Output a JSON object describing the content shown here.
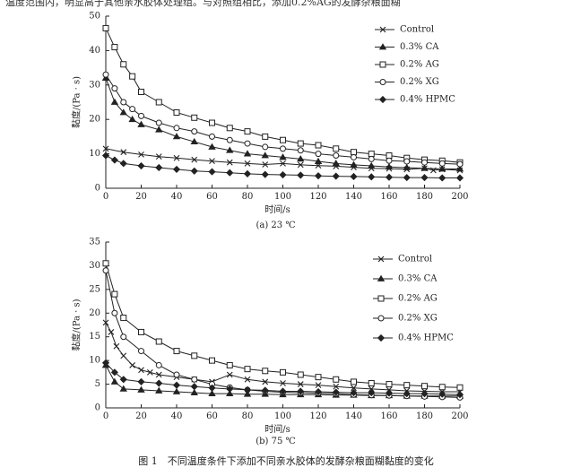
{
  "top_fragment": "温度范围内，明显高于其他亲水胶体处理组。与对照组相比，添加0.2%AG的发酵杂粮面糊",
  "caption": "图 1　不同温度条件下添加不同亲水胶体的发酵杂粮面糊黏度的变化",
  "chart_data": [
    {
      "type": "line",
      "subtitle": "(a) 23 ℃",
      "xlabel": "时间/s",
      "ylabel": "黏度/(Pa · s)",
      "xlim": [
        0,
        200
      ],
      "ylim": [
        0,
        50
      ],
      "xticks": [
        "0",
        "20",
        "40",
        "60",
        "80",
        "100",
        "120",
        "140",
        "160",
        "180",
        "200"
      ],
      "yticks": [
        "0",
        "10",
        "20",
        "30",
        "40",
        "50"
      ],
      "legend_position": "right",
      "series": [
        {
          "name": "Control",
          "marker": "x",
          "x": [
            0,
            10,
            20,
            30,
            40,
            50,
            60,
            70,
            80,
            90,
            100,
            110,
            120,
            130,
            140,
            150,
            160,
            170,
            180,
            185,
            190,
            200
          ],
          "y": [
            11.5,
            10.5,
            9.8,
            9.2,
            8.8,
            8.3,
            7.9,
            7.5,
            7.2,
            6.9,
            7.2,
            6.8,
            6.6,
            6.4,
            6.1,
            5.8,
            5.7,
            5.5,
            5.8,
            5.2,
            5.5,
            5.2
          ]
        },
        {
          "name": "0.3% CA",
          "marker": "triangle",
          "x": [
            0,
            5,
            10,
            15,
            20,
            30,
            40,
            50,
            60,
            70,
            80,
            90,
            100,
            110,
            120,
            130,
            140,
            150,
            160,
            170,
            180,
            190,
            200
          ],
          "y": [
            32,
            25,
            22,
            20,
            18.5,
            17,
            15,
            13.5,
            12,
            11,
            10,
            9.5,
            9,
            8.5,
            7.8,
            7.2,
            6.8,
            6.5,
            6.2,
            6,
            5.8,
            5.6,
            5.6
          ]
        },
        {
          "name": "0.2% AG",
          "marker": "square",
          "x": [
            0,
            5,
            10,
            15,
            20,
            30,
            40,
            50,
            60,
            70,
            80,
            90,
            100,
            110,
            120,
            130,
            140,
            150,
            160,
            170,
            180,
            190,
            200
          ],
          "y": [
            46.5,
            41,
            36,
            32.5,
            28,
            25,
            22,
            20.5,
            19,
            17.5,
            16.5,
            15,
            14,
            13,
            12.5,
            11.5,
            10.5,
            10,
            9.5,
            8.8,
            8.3,
            8,
            7.5
          ]
        },
        {
          "name": "0.2% XG",
          "marker": "circle",
          "x": [
            0,
            5,
            10,
            15,
            20,
            30,
            40,
            50,
            60,
            70,
            80,
            90,
            100,
            110,
            120,
            130,
            140,
            150,
            160,
            170,
            180,
            190,
            200
          ],
          "y": [
            33,
            29,
            25,
            23,
            21,
            19,
            17.5,
            16.5,
            15,
            14,
            13,
            12,
            11.5,
            11,
            10,
            9.5,
            9,
            8.5,
            8,
            7.8,
            7.5,
            7.2,
            7
          ]
        },
        {
          "name": "0.4% HPMC",
          "marker": "diamond",
          "x": [
            0,
            5,
            10,
            20,
            30,
            40,
            50,
            60,
            70,
            80,
            90,
            100,
            110,
            120,
            130,
            140,
            150,
            160,
            170,
            180,
            190,
            200
          ],
          "y": [
            9.5,
            8.2,
            7.2,
            6.5,
            6,
            5.5,
            5,
            4.8,
            4.5,
            4.2,
            4,
            3.9,
            3.8,
            3.6,
            3.5,
            3.4,
            3.3,
            3.2,
            3.1,
            3.1,
            3,
            3
          ]
        }
      ]
    },
    {
      "type": "line",
      "subtitle": "(b) 75 ℃",
      "xlabel": "时间/s",
      "ylabel": "黏度/(Pa · s)",
      "xlim": [
        0,
        200
      ],
      "ylim": [
        0,
        35
      ],
      "xticks": [
        "0",
        "20",
        "40",
        "60",
        "80",
        "100",
        "120",
        "140",
        "160",
        "180",
        "200"
      ],
      "yticks": [
        "0",
        "5",
        "10",
        "15",
        "20",
        "25",
        "30",
        "35"
      ],
      "legend_position": "right",
      "series": [
        {
          "name": "Control",
          "marker": "x",
          "x": [
            0,
            3,
            6,
            10,
            15,
            20,
            25,
            30,
            40,
            50,
            60,
            70,
            80,
            90,
            100,
            110,
            120,
            130,
            140,
            150,
            160,
            170,
            180,
            190,
            200
          ],
          "y": [
            18,
            16,
            13,
            11,
            9,
            8,
            7.5,
            7,
            6.5,
            6,
            5.5,
            7,
            6,
            5.5,
            5.2,
            5,
            4.8,
            4.5,
            4.2,
            4,
            3.8,
            3.6,
            3.5,
            3.4,
            3.4
          ]
        },
        {
          "name": "0.3% CA",
          "marker": "triangle",
          "x": [
            0,
            5,
            10,
            20,
            30,
            40,
            50,
            60,
            70,
            80,
            90,
            100,
            110,
            120,
            130,
            140,
            150,
            160,
            170,
            180,
            190,
            200
          ],
          "y": [
            9,
            5.5,
            4,
            3.8,
            3.6,
            3.4,
            3.2,
            3,
            3,
            2.9,
            2.9,
            2.8,
            2.8,
            2.8,
            2.7,
            2.7,
            2.6,
            2.6,
            2.5,
            2.5,
            2.5,
            2.5
          ]
        },
        {
          "name": "0.2% AG",
          "marker": "square",
          "x": [
            0,
            5,
            10,
            20,
            30,
            40,
            50,
            60,
            70,
            80,
            90,
            100,
            110,
            120,
            130,
            140,
            150,
            160,
            170,
            180,
            190,
            200
          ],
          "y": [
            30.5,
            24,
            19,
            16,
            14,
            12,
            11,
            10,
            9,
            8.2,
            7.8,
            7.5,
            7,
            6.5,
            6,
            5.5,
            5.2,
            5,
            4.8,
            4.6,
            4.4,
            4.3
          ]
        },
        {
          "name": "0.2% XG",
          "marker": "circle",
          "x": [
            0,
            5,
            10,
            20,
            30,
            40,
            50,
            60,
            70,
            80,
            90,
            100,
            110,
            120,
            130,
            140,
            150,
            160,
            170,
            180,
            190,
            200
          ],
          "y": [
            29,
            20,
            15,
            12,
            9,
            7,
            6,
            5,
            4.3,
            3.8,
            3.5,
            3.3,
            3.2,
            3.1,
            3,
            2.8,
            2.7,
            2.6,
            2.5,
            2.4,
            2.3,
            2.2
          ]
        },
        {
          "name": "0.4% HPMC",
          "marker": "diamond",
          "x": [
            0,
            5,
            10,
            20,
            30,
            40,
            50,
            60,
            70,
            80,
            90,
            100,
            110,
            120,
            130,
            140,
            150,
            160,
            170,
            180,
            190,
            200
          ],
          "y": [
            9.5,
            7.5,
            6,
            5.5,
            5.2,
            4.8,
            4.5,
            4.2,
            4,
            3.8,
            3.7,
            3.5,
            3.5,
            3.4,
            3.3,
            3.2,
            3.2,
            3.1,
            3,
            3,
            2.9,
            2.8
          ]
        }
      ]
    }
  ]
}
